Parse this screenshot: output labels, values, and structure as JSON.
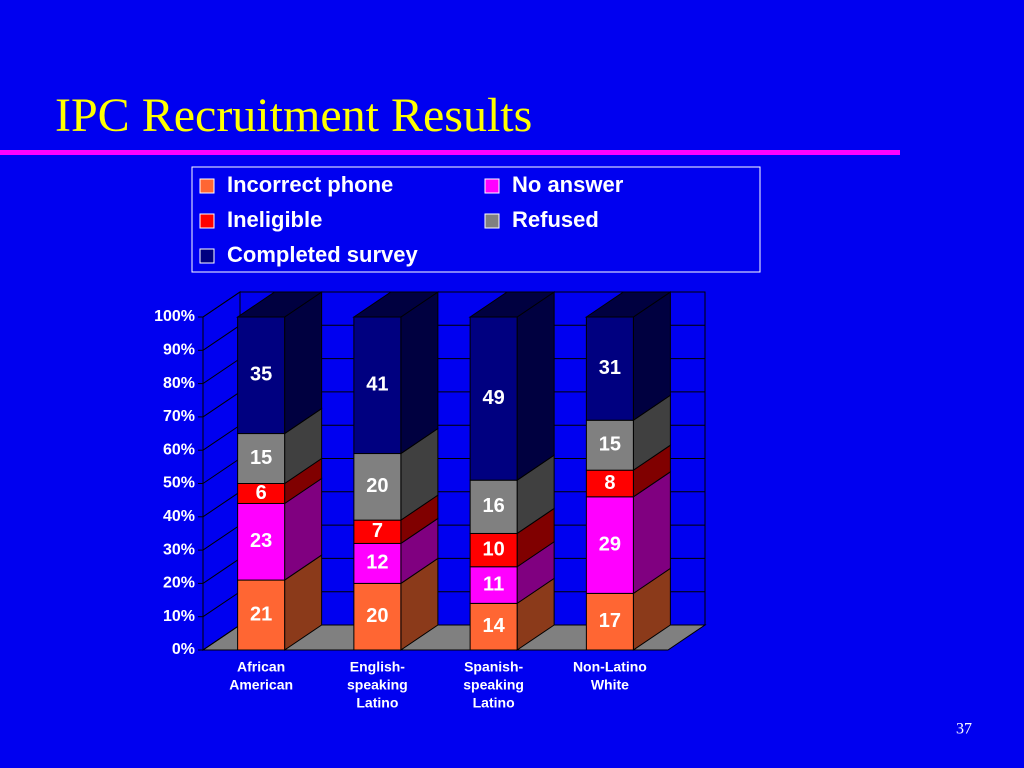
{
  "title": "IPC Recruitment Results",
  "page_number": "37",
  "chart_data": {
    "type": "stacked_bar_3d",
    "categories": [
      [
        "African",
        "American"
      ],
      [
        "English-",
        "speaking",
        "Latino"
      ],
      [
        "Spanish-",
        "speaking",
        "Latino"
      ],
      [
        "Non-Latino",
        "White"
      ]
    ],
    "series": [
      {
        "name": "Incorrect phone",
        "color": "#ff6633",
        "side": "#8b3a1a",
        "values": [
          21,
          20,
          14,
          17
        ]
      },
      {
        "name": "No answer",
        "color": "#ff00ff",
        "side": "#800080",
        "values": [
          23,
          12,
          11,
          29
        ]
      },
      {
        "name": "Ineligible",
        "color": "#ff0000",
        "side": "#800000",
        "values": [
          6,
          7,
          10,
          8
        ]
      },
      {
        "name": "Refused",
        "color": "#808080",
        "side": "#404040",
        "values": [
          15,
          20,
          16,
          15
        ]
      },
      {
        "name": "Completed survey",
        "color": "#000080",
        "side": "#000040",
        "values": [
          35,
          41,
          49,
          31
        ]
      }
    ],
    "ylim": [
      0,
      100
    ],
    "yticks": [
      {
        "value": 0,
        "label": "0%"
      },
      {
        "value": 10,
        "label": "10%"
      },
      {
        "value": 20,
        "label": "20%"
      },
      {
        "value": 30,
        "label": "30%"
      },
      {
        "value": 40,
        "label": "40%"
      },
      {
        "value": 50,
        "label": "50%"
      },
      {
        "value": 60,
        "label": "60%"
      },
      {
        "value": 70,
        "label": "70%"
      },
      {
        "value": 80,
        "label": "80%"
      },
      {
        "value": 90,
        "label": "90%"
      },
      {
        "value": 100,
        "label": "100%"
      }
    ],
    "grid": true
  }
}
